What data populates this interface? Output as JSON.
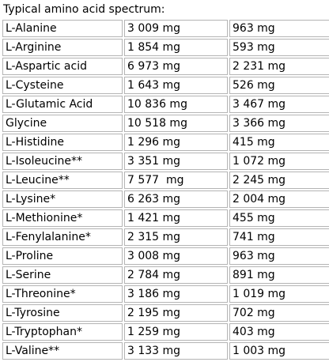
{
  "title": "Typical amino acid spectrum:",
  "rows": [
    {
      "name": "L-Alanine",
      "v1": "3 009 mg",
      "v2": "963 mg"
    },
    {
      "name": "L-Arginine",
      "v1": "1 854 mg",
      "v2": "593 mg"
    },
    {
      "name": "L-Aspartic acid",
      "v1": "6 973 mg",
      "v2": "2 231 mg"
    },
    {
      "name": "L-Cysteine",
      "v1": "1 643 mg",
      "v2": "526 mg"
    },
    {
      "name": "L-Glutamic Acid",
      "v1": "10 836 mg",
      "v2": "3 467 mg"
    },
    {
      "name": "Glycine",
      "v1": "10 518 mg",
      "v2": "3 366 mg"
    },
    {
      "name": "L-Histidine",
      "v1": "1 296 mg",
      "v2": "415 mg"
    },
    {
      "name": "L-Isoleucine**",
      "v1": "3 351 mg",
      "v2": "1 072 mg"
    },
    {
      "name": "L-Leucine**",
      "v1": "7 577  mg",
      "v2": "2 245 mg"
    },
    {
      "name": "L-Lysine*",
      "v1": "6 263 mg",
      "v2": "2 004 mg"
    },
    {
      "name": "L-Methionine*",
      "v1": "1 421 mg",
      "v2": "455 mg"
    },
    {
      "name": "L-Fenylalanine*",
      "v1": "2 315 mg",
      "v2": "741 mg"
    },
    {
      "name": "L-Proline",
      "v1": "3 008 mg",
      "v2": "963 mg"
    },
    {
      "name": "L-Serine",
      "v1": "2 784 mg",
      "v2": "891 mg"
    },
    {
      "name": "L-Threonine*",
      "v1": "3 186 mg",
      "v2": "1 019 mg"
    },
    {
      "name": "L-Tyrosine",
      "v1": "2 195 mg",
      "v2": "702 mg"
    },
    {
      "name": "L-Tryptophan*",
      "v1": "1 259 mg",
      "v2": "403 mg"
    },
    {
      "name": "L-Valine**",
      "v1": "3 133 mg",
      "v2": "1 003 mg"
    }
  ]
}
